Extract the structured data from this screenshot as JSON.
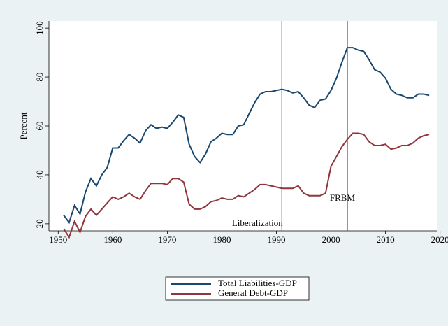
{
  "chart_data": {
    "type": "line",
    "ylabel": "Percent",
    "x": [
      1951,
      1952,
      1953,
      1954,
      1955,
      1956,
      1957,
      1958,
      1959,
      1960,
      1961,
      1962,
      1963,
      1964,
      1965,
      1966,
      1967,
      1968,
      1969,
      1970,
      1971,
      1972,
      1973,
      1974,
      1975,
      1976,
      1977,
      1978,
      1979,
      1980,
      1981,
      1982,
      1983,
      1984,
      1985,
      1986,
      1987,
      1988,
      1989,
      1990,
      1991,
      1992,
      1993,
      1994,
      1995,
      1996,
      1997,
      1998,
      1999,
      2000,
      2001,
      2002,
      2003,
      2004,
      2005,
      2006,
      2007,
      2008,
      2009,
      2010,
      2011,
      2012,
      2013,
      2014,
      2015,
      2016,
      2017,
      2018
    ],
    "series": [
      {
        "name": "Total Liabilities-GDP",
        "color": "#1a476f",
        "values": [
          23.5,
          20.5,
          27.5,
          24,
          33,
          38.5,
          35.5,
          40,
          43,
          51,
          51,
          54,
          56.5,
          55,
          53,
          58,
          60.5,
          59,
          59.5,
          59,
          61.5,
          64.5,
          63.5,
          52.5,
          47.5,
          45,
          48.5,
          53.5,
          55,
          57,
          56.5,
          56.5,
          60,
          60.5,
          65,
          69.5,
          73,
          74,
          74,
          74.5,
          75,
          74.5,
          73.5,
          74,
          71.5,
          68.5,
          67.5,
          70.5,
          71,
          74.5,
          79.5,
          86,
          92,
          92,
          91,
          90.5,
          87,
          83,
          82,
          79.5,
          75,
          73,
          72.5,
          71.5,
          71.5,
          73,
          73,
          72.5
        ]
      },
      {
        "name": "General Debt-GDP",
        "color": "#90353b",
        "values": [
          18,
          14.5,
          21,
          16.5,
          23,
          26,
          23.5,
          26,
          28.5,
          31,
          30,
          31,
          32.5,
          31,
          30,
          33.5,
          36.5,
          36.5,
          36.5,
          36,
          38.5,
          38.5,
          37,
          28,
          26,
          26,
          27,
          29,
          29.5,
          30.5,
          30,
          30,
          31.5,
          31,
          32.5,
          34,
          36,
          36,
          35.5,
          35,
          34.5,
          34.5,
          34.5,
          35.5,
          32.5,
          31.5,
          31.5,
          31.5,
          32.5,
          43.5,
          47.5,
          51.5,
          54.5,
          57,
          57,
          56.5,
          53.5,
          52,
          52,
          52.5,
          50.5,
          51,
          52,
          52,
          53,
          55,
          56,
          56.5
        ]
      }
    ],
    "vlines": [
      {
        "x": 1991,
        "color": "#b5174a"
      },
      {
        "x": 2003,
        "color": "#b5174a"
      }
    ],
    "annotations": [
      {
        "text": "Liberalization"
      },
      {
        "text": "FRBM"
      }
    ],
    "xlim": [
      1948.3,
      2019.4
    ],
    "ylim": [
      17.1,
      102.9
    ],
    "xticks": [
      1950,
      1960,
      1970,
      1980,
      1990,
      2000,
      2010,
      2020
    ],
    "yticks": [
      20,
      40,
      60,
      80,
      100
    ]
  }
}
